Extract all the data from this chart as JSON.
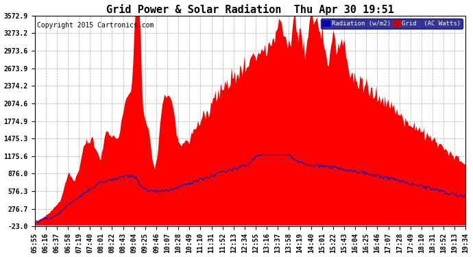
{
  "title": "Grid Power & Solar Radiation  Thu Apr 30 19:51",
  "copyright": "Copyright 2015 Cartronics.com",
  "yticks": [
    3572.9,
    3273.2,
    2973.6,
    2673.9,
    2374.2,
    2074.6,
    1774.9,
    1475.3,
    1175.6,
    876.0,
    576.3,
    276.7,
    -23.0
  ],
  "ymin": -23.0,
  "ymax": 3572.9,
  "xtick_labels": [
    "05:55",
    "06:16",
    "06:37",
    "06:58",
    "07:19",
    "07:40",
    "08:01",
    "08:22",
    "08:43",
    "09:04",
    "09:25",
    "09:46",
    "10:07",
    "10:28",
    "10:49",
    "11:10",
    "11:31",
    "11:52",
    "12:13",
    "12:34",
    "12:55",
    "13:16",
    "13:37",
    "13:58",
    "14:19",
    "14:40",
    "15:01",
    "15:22",
    "15:43",
    "16:04",
    "16:25",
    "16:46",
    "17:07",
    "17:28",
    "17:49",
    "18:10",
    "18:31",
    "18:52",
    "19:13",
    "19:34"
  ],
  "bg_color": "#ffffff",
  "plot_bg_color": "#ffffff",
  "grid_color": "#aaaaaa",
  "radiation_color": "#0000cc",
  "radiation_fill": "#ff0000",
  "radiation_legend": "Radiation (w/m2)",
  "radiation_legend_bg": "#0000aa",
  "grid_legend": "Grid  (AC Watts)",
  "grid_legend_bg": "#cc0000",
  "title_fontsize": 11,
  "tick_fontsize": 7,
  "copyright_fontsize": 7
}
